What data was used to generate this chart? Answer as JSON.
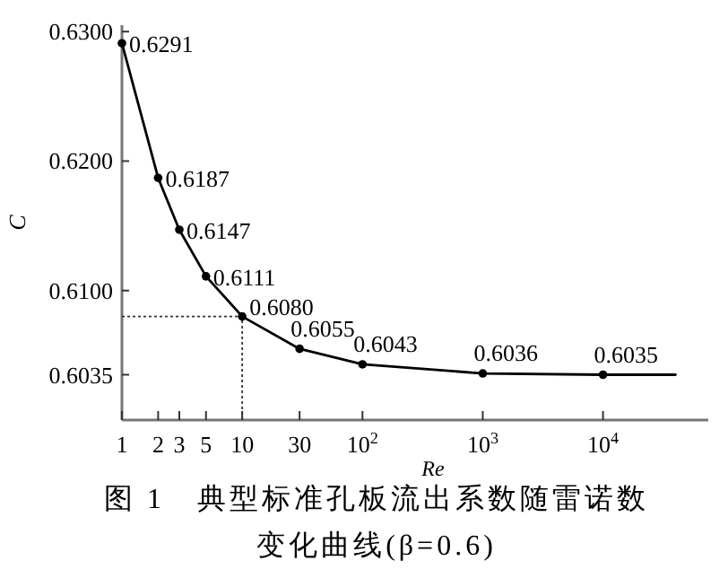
{
  "chart_data": {
    "type": "line",
    "title": "图 1　典型标准孔板流出系数随雷诺数变化曲线(β=0.6)",
    "xlabel": "*Re*",
    "ylabel": "*C*",
    "log": "x",
    "marker": "circle",
    "line_style": "solid",
    "grid": false,
    "xlim": [
      1,
      75000
    ],
    "ylim": [
      0.6,
      0.6305
    ],
    "xticks": [
      1,
      2,
      3,
      5,
      10,
      30,
      {
        "value": 100,
        "label": "10$^{2}$"
      },
      {
        "value": 1000,
        "label": "10$^{3}$"
      },
      {
        "value": 10000,
        "label": "10$^{4}$"
      }
    ],
    "yticks": [
      {
        "value": 0.6035,
        "label": "0.6035"
      },
      {
        "value": 0.61,
        "label": "0.6100"
      },
      {
        "value": 0.62,
        "label": "0.6200"
      },
      {
        "value": 0.63,
        "label": "0.6300"
      }
    ],
    "ref_lines": [
      {
        "axis": "x",
        "value": 10,
        "line_style": "dotted"
      },
      {
        "axis": "y",
        "value": 0.608,
        "line_style": "dotted"
      }
    ],
    "series": [
      {
        "color": "#000000",
        "x": [
          1,
          2,
          3,
          5,
          10,
          30,
          100,
          1000,
          10000
        ],
        "values": [
          0.6291,
          0.6187,
          0.6147,
          0.6111,
          0.608,
          0.6055,
          0.6043,
          0.6036,
          0.6035
        ],
        "value_labels": [
          "0.6291",
          "0.6187",
          "0.6147",
          "0.6111",
          "0.6080",
          "0.6055",
          "0.6043",
          "0.6036",
          "0.6035"
        ]
      },
      {
        "color": "#000000",
        "marker": "none",
        "x": [
          10000,
          40000
        ],
        "values": [
          0.6035,
          0.6035
        ]
      }
    ]
  }
}
